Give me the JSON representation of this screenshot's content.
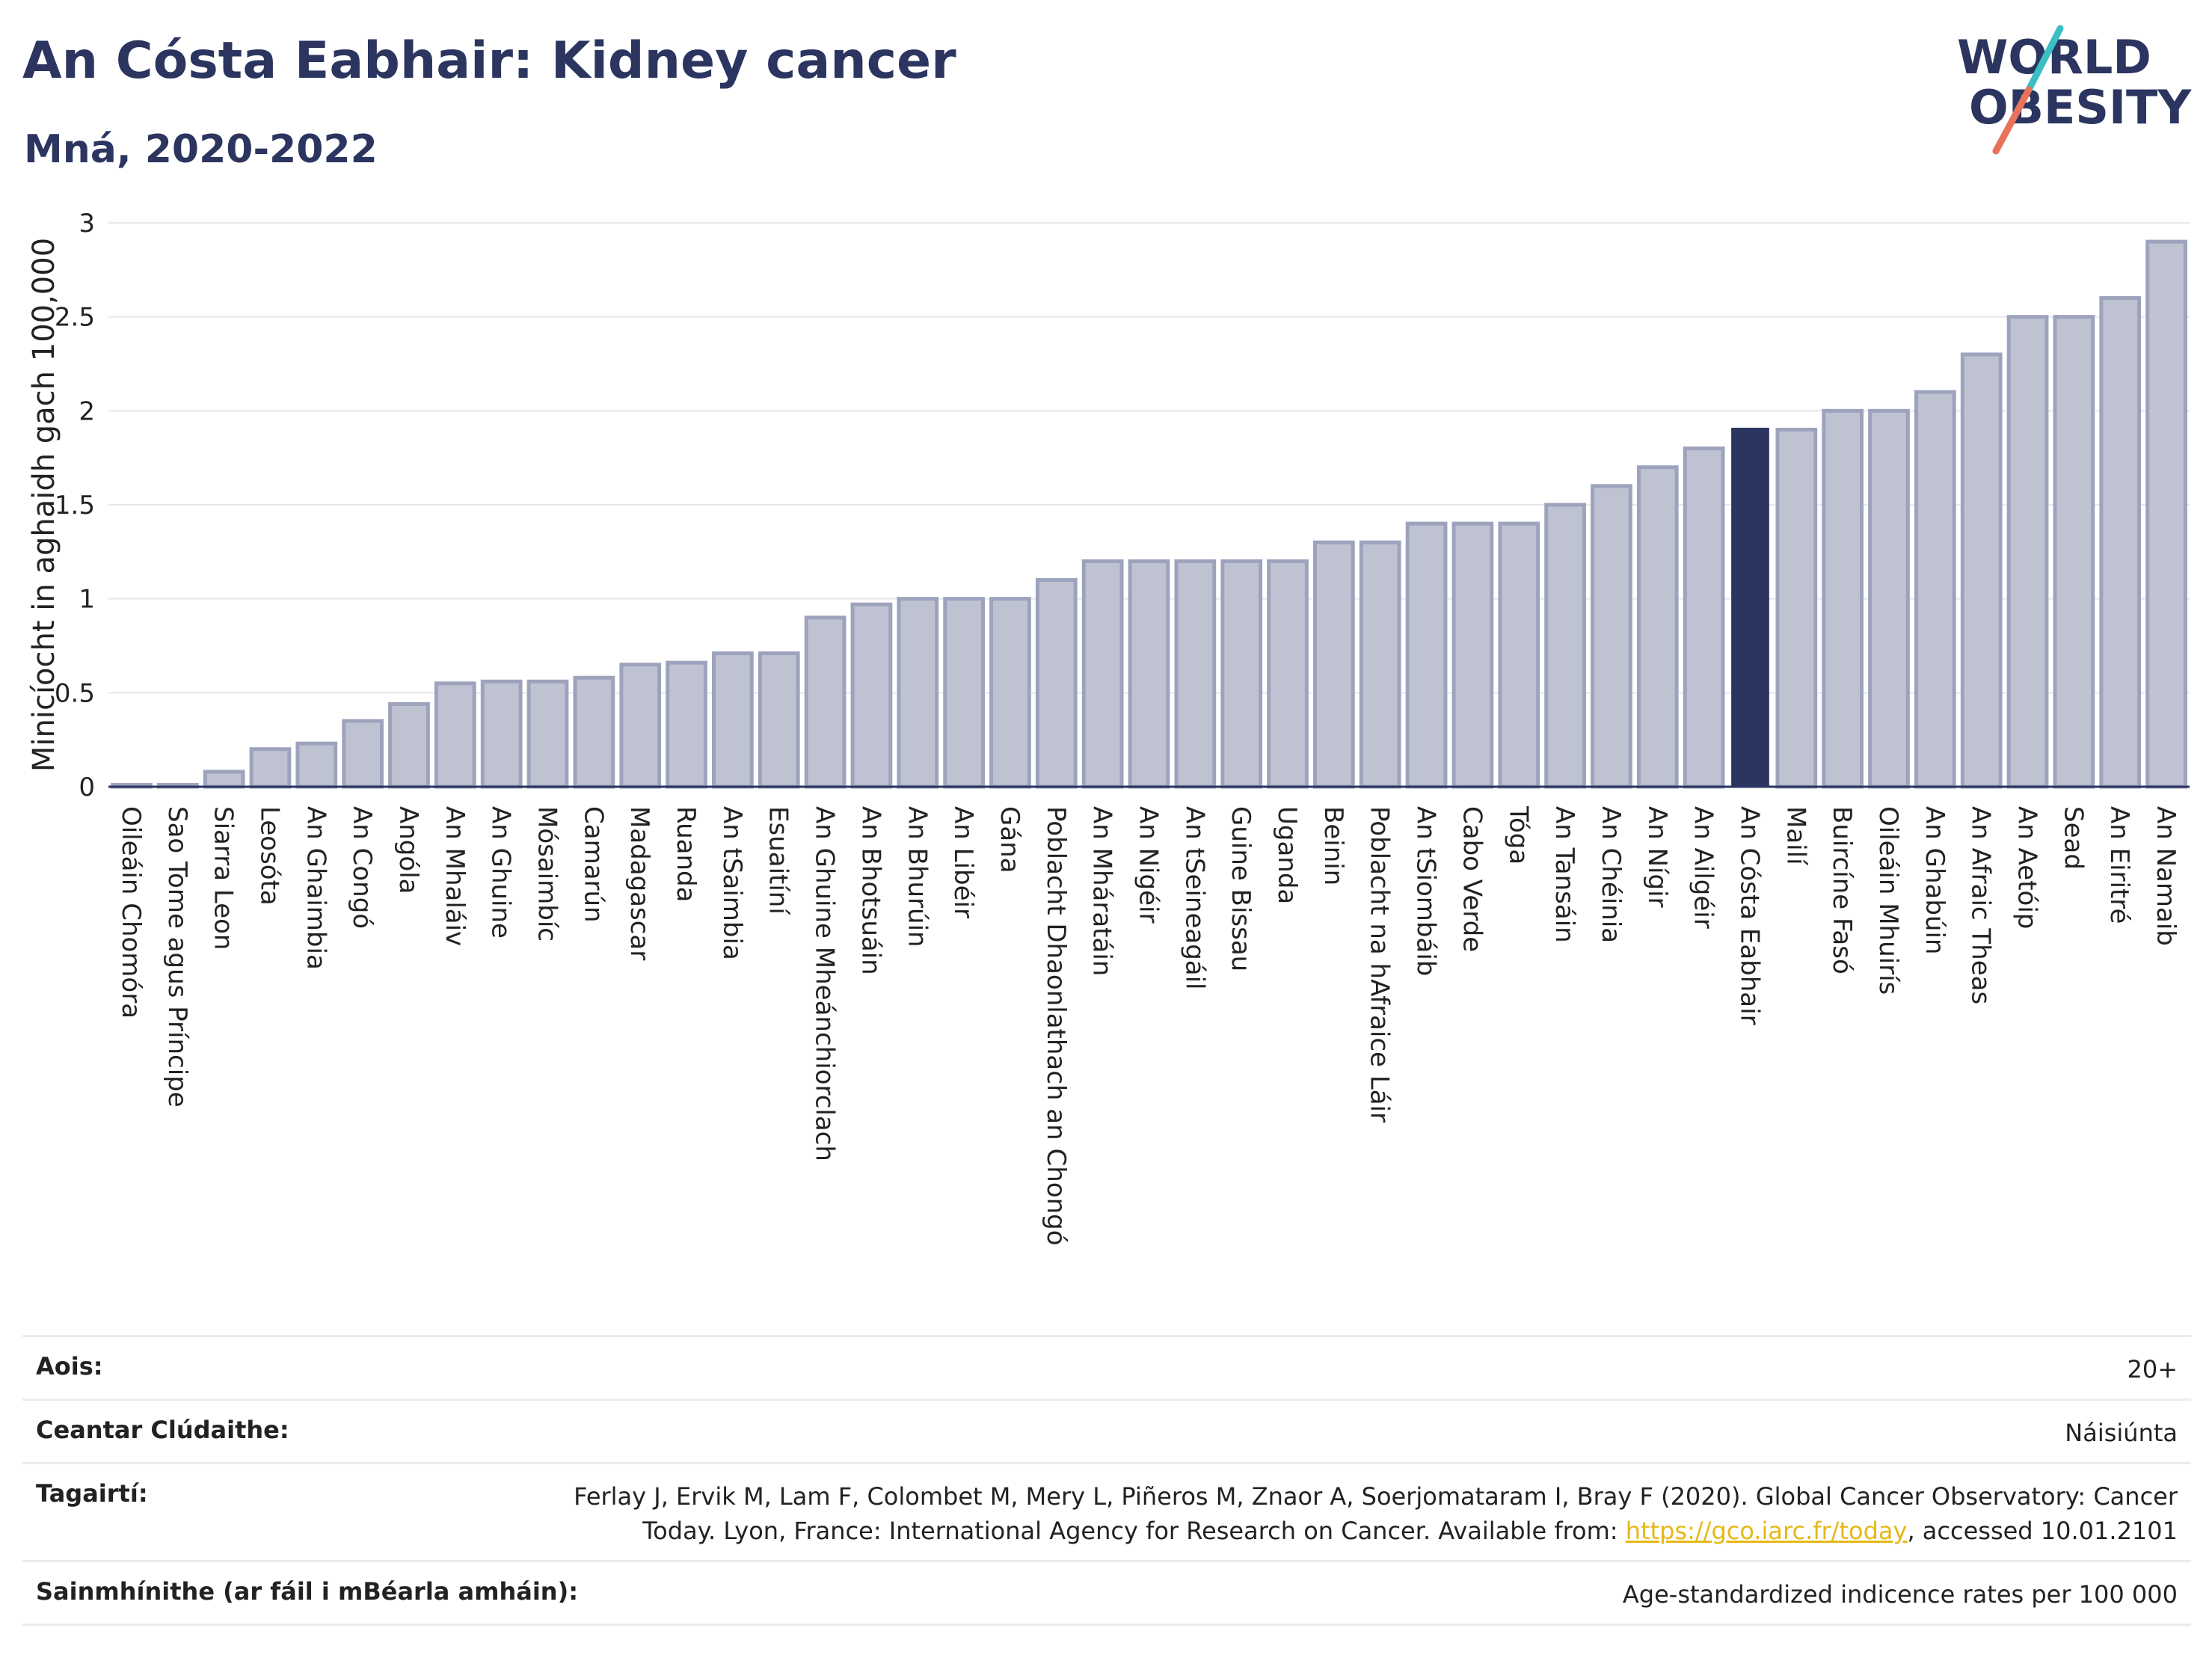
{
  "header": {
    "title": "An Cósta Eabhair: Kidney cancer",
    "subtitle": "Mná, 2020-2022"
  },
  "logo": {
    "line1": "WORLD",
    "line2": "OBESITY",
    "colors": {
      "text": "#2b3560",
      "slash_teal": "#3bbfc4",
      "slash_red": "#e8735a"
    }
  },
  "chart_data": {
    "type": "bar",
    "ylabel": "Minicíocht in aghaidh gach 100,000",
    "xlabel": "",
    "ylim": [
      0,
      3
    ],
    "yticks": [
      0,
      0.5,
      1,
      1.5,
      2,
      2.5,
      3
    ],
    "ytick_labels": [
      "0",
      "0.5",
      "1",
      "1.5",
      "2",
      "2.5",
      "3"
    ],
    "grid": true,
    "highlight": "An Cósta Eabhair",
    "colors": {
      "bar": "#bfc3d1",
      "bar_edge": "#9da3bd",
      "highlight": "#2b3560"
    },
    "categories": [
      "Oileáin Chomóra",
      "Sao Tome agus Príncipe",
      "Siarra Leon",
      "Leosóta",
      "An Ghaimbia",
      "An Congó",
      "Angóla",
      "An Mhaláiv",
      "An Ghuine",
      "Mósaimbíc",
      "Camarún",
      "Madagascar",
      "Ruanda",
      "An tSaimbia",
      "Esuaitíní",
      "An Ghuine Mheánchiorclach",
      "An Bhotsuáin",
      "An Bhurúin",
      "An Libéir",
      "Gána",
      "Poblacht Dhaonlathach an Chongó",
      "An Mháratáin",
      "An Nigéir",
      "An tSeineagáil",
      "Guine Bissau",
      "Uganda",
      "Beinin",
      "Poblacht na hAfraice Láir",
      "An tSiombáib",
      "Cabo Verde",
      "Tóga",
      "An Tansáin",
      "An Chéinia",
      "An Nígir",
      "An Ailgéir",
      "An Cósta Eabhair",
      "Mailí",
      "Buircíne Fasó",
      "Oileáin Mhuirís",
      "An Ghabúin",
      "An Afraic Theas",
      "An Aetóip",
      "Sead",
      "An Eiritré",
      "An Namaib"
    ],
    "values": [
      0.01,
      0.01,
      0.08,
      0.2,
      0.23,
      0.35,
      0.44,
      0.55,
      0.56,
      0.56,
      0.58,
      0.65,
      0.66,
      0.71,
      0.71,
      0.9,
      0.97,
      1.0,
      1.0,
      1.0,
      1.1,
      1.2,
      1.2,
      1.2,
      1.2,
      1.2,
      1.3,
      1.3,
      1.4,
      1.4,
      1.4,
      1.5,
      1.6,
      1.7,
      1.8,
      1.91,
      1.9,
      2.0,
      2.0,
      2.1,
      2.3,
      2.5,
      2.5,
      2.6,
      2.9
    ]
  },
  "meta": {
    "rows": [
      {
        "key": "Aois:",
        "value": "20+"
      },
      {
        "key": "Ceantar Clúdaithe:",
        "value": "Náisiúnta"
      },
      {
        "key": "Tagairtí:",
        "value": "Ferlay J, Ervik M, Lam F, Colombet M, Mery L, Piñeros M, Znaor A, Soerjomataram I, Bray F (2020). Global Cancer Observatory: Cancer Today. Lyon, France: International Agency for Research on Cancer. Available from: ",
        "link": "https://gco.iarc.fr/today",
        "suffix": ", accessed 10.01.2101"
      },
      {
        "key": "Sainmhínithe (ar fáil i mBéarla amháin):",
        "value": "Age-standardized indicence rates per 100 000"
      }
    ]
  }
}
